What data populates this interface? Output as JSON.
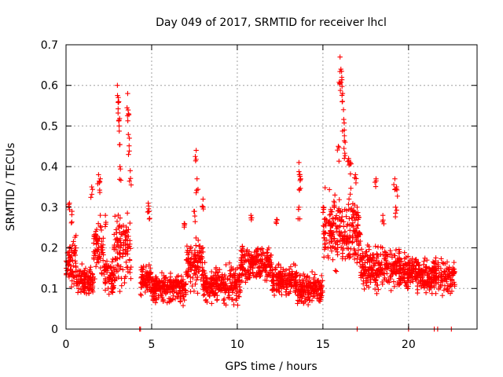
{
  "chart_data": {
    "type": "scatter",
    "title": "Day 049 of 2017, SRMTID for receiver lhcl",
    "xlabel": "GPS time / hours",
    "ylabel": "SRMTID / TECUs",
    "xlim": [
      0,
      24
    ],
    "ylim": [
      0,
      0.7
    ],
    "xticks": [
      0,
      5,
      10,
      15,
      20
    ],
    "xtick_labels": [
      "0",
      "5",
      "10",
      "15",
      "20"
    ],
    "yticks": [
      0,
      0.1,
      0.2,
      0.3,
      0.4,
      0.5,
      0.6,
      0.7
    ],
    "ytick_labels": [
      "0",
      "0.1",
      "0.2",
      "0.3",
      "0.4",
      "0.5",
      "0.6",
      "0.7"
    ],
    "grid": true,
    "marker": "+",
    "series_color": "#ff0000",
    "segments": [
      {
        "x_start": 0.0,
        "x_end": 0.6,
        "baseline": 0.17,
        "spread": 0.08
      },
      {
        "x_start": 0.6,
        "x_end": 1.6,
        "baseline": 0.12,
        "spread": 0.05
      },
      {
        "x_start": 1.6,
        "x_end": 2.2,
        "baseline": 0.2,
        "spread": 0.1
      },
      {
        "x_start": 2.2,
        "x_end": 2.8,
        "baseline": 0.13,
        "spread": 0.06
      },
      {
        "x_start": 2.8,
        "x_end": 3.8,
        "baseline": 0.2,
        "spread": 0.12
      },
      {
        "x_start": 4.3,
        "x_end": 5.0,
        "baseline": 0.12,
        "spread": 0.06
      },
      {
        "x_start": 5.0,
        "x_end": 7.0,
        "baseline": 0.1,
        "spread": 0.05
      },
      {
        "x_start": 7.0,
        "x_end": 8.0,
        "baseline": 0.16,
        "spread": 0.08
      },
      {
        "x_start": 8.0,
        "x_end": 10.2,
        "baseline": 0.11,
        "spread": 0.06
      },
      {
        "x_start": 10.2,
        "x_end": 12.0,
        "baseline": 0.16,
        "spread": 0.06
      },
      {
        "x_start": 12.0,
        "x_end": 13.5,
        "baseline": 0.12,
        "spread": 0.05
      },
      {
        "x_start": 13.5,
        "x_end": 15.0,
        "baseline": 0.1,
        "spread": 0.05
      },
      {
        "x_start": 15.0,
        "x_end": 17.2,
        "baseline": 0.24,
        "spread": 0.12
      },
      {
        "x_start": 17.2,
        "x_end": 19.5,
        "baseline": 0.15,
        "spread": 0.07
      },
      {
        "x_start": 19.5,
        "x_end": 20.5,
        "baseline": 0.14,
        "spread": 0.06
      },
      {
        "x_start": 20.5,
        "x_end": 22.7,
        "baseline": 0.13,
        "spread": 0.06
      }
    ],
    "peaks": [
      {
        "x": 0.2,
        "y": 0.31
      },
      {
        "x": 0.35,
        "y": 0.29
      },
      {
        "x": 1.5,
        "y": 0.35
      },
      {
        "x": 1.9,
        "y": 0.38
      },
      {
        "x": 2.0,
        "y": 0.37
      },
      {
        "x": 2.3,
        "y": 0.28
      },
      {
        "x": 3.0,
        "y": 0.6
      },
      {
        "x": 3.05,
        "y": 0.57
      },
      {
        "x": 3.08,
        "y": 0.56
      },
      {
        "x": 3.1,
        "y": 0.5
      },
      {
        "x": 3.15,
        "y": 0.4
      },
      {
        "x": 3.6,
        "y": 0.58
      },
      {
        "x": 3.65,
        "y": 0.53
      },
      {
        "x": 3.7,
        "y": 0.47
      },
      {
        "x": 3.75,
        "y": 0.39
      },
      {
        "x": 4.8,
        "y": 0.31
      },
      {
        "x": 4.85,
        "y": 0.29
      },
      {
        "x": 6.9,
        "y": 0.26
      },
      {
        "x": 7.5,
        "y": 0.29
      },
      {
        "x": 7.6,
        "y": 0.44
      },
      {
        "x": 7.65,
        "y": 0.37
      },
      {
        "x": 8.0,
        "y": 0.32
      },
      {
        "x": 10.8,
        "y": 0.28
      },
      {
        "x": 12.3,
        "y": 0.27
      },
      {
        "x": 13.6,
        "y": 0.41
      },
      {
        "x": 13.65,
        "y": 0.38
      },
      {
        "x": 13.7,
        "y": 0.37
      },
      {
        "x": 13.6,
        "y": 0.3
      },
      {
        "x": 15.7,
        "y": 0.33
      },
      {
        "x": 15.9,
        "y": 0.45
      },
      {
        "x": 16.0,
        "y": 0.67
      },
      {
        "x": 16.05,
        "y": 0.64
      },
      {
        "x": 16.1,
        "y": 0.62
      },
      {
        "x": 16.15,
        "y": 0.58
      },
      {
        "x": 16.2,
        "y": 0.54
      },
      {
        "x": 16.25,
        "y": 0.49
      },
      {
        "x": 16.3,
        "y": 0.46
      },
      {
        "x": 16.5,
        "y": 0.42
      },
      {
        "x": 16.6,
        "y": 0.41
      },
      {
        "x": 16.9,
        "y": 0.38
      },
      {
        "x": 17.0,
        "y": 0.3
      },
      {
        "x": 18.1,
        "y": 0.37
      },
      {
        "x": 18.5,
        "y": 0.28
      },
      {
        "x": 19.2,
        "y": 0.37
      },
      {
        "x": 19.3,
        "y": 0.35
      },
      {
        "x": 19.25,
        "y": 0.3
      }
    ],
    "lows": [
      {
        "x": 4.3,
        "y": 0.0
      },
      {
        "x": 4.35,
        "y": 0.0
      },
      {
        "x": 17.0,
        "y": 0.0
      },
      {
        "x": 20.0,
        "y": 0.0
      },
      {
        "x": 21.5,
        "y": 0.0
      },
      {
        "x": 21.7,
        "y": 0.0
      },
      {
        "x": 22.5,
        "y": 0.0
      }
    ]
  }
}
